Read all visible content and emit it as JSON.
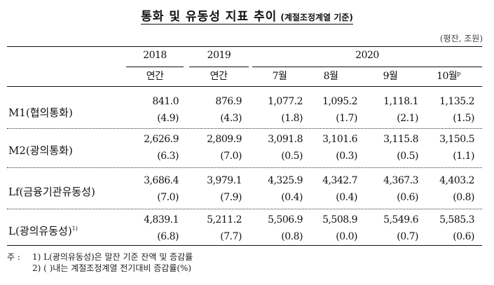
{
  "title": {
    "main": "통화 및 유동성 지표 추이",
    "sub": "(계절조정계열 기준)"
  },
  "unit": "(평잔, 조원)",
  "header": {
    "years": [
      "2018",
      "2019",
      "2020"
    ],
    "periods": [
      "연간",
      "연간",
      "7월",
      "8월",
      "9월",
      "10월"
    ],
    "prelim_mark": "p"
  },
  "rows": [
    {
      "label": "M1(협의통화)",
      "values": [
        "841.0",
        "876.9",
        "1,077.2",
        "1,095.2",
        "1,118.1",
        "1,135.2"
      ],
      "changes": [
        "(4.9)",
        "(4.3)",
        "(1.8)",
        "(1.7)",
        "(2.1)",
        "(1.5)"
      ]
    },
    {
      "label": "M2(광의통화)",
      "values": [
        "2,626.9",
        "2,809.9",
        "3,091.8",
        "3,101.6",
        "3,115.8",
        "3,150.5"
      ],
      "changes": [
        "(6.3)",
        "(7.0)",
        "(0.5)",
        "(0.3)",
        "(0.5)",
        "(1.1)"
      ]
    },
    {
      "label": "Lf(금융기관유동성)",
      "values": [
        "3,686.4",
        "3,979.1",
        "4,325.9",
        "4,342.7",
        "4,367.3",
        "4,403.2"
      ],
      "changes": [
        "(7.0)",
        "(7.9)",
        "(0.4)",
        "(0.4)",
        "(0.6)",
        "(0.8)"
      ]
    },
    {
      "label": "L(광의유동성)",
      "footnote": "1)",
      "values": [
        "4,839.1",
        "5,211.2",
        "5,506.9",
        "5,508.9",
        "5,549.6",
        "5,585.3"
      ],
      "changes": [
        "(6.8)",
        "(7.7)",
        "(0.8)",
        "(0.0)",
        "(0.7)",
        "(0.6)"
      ]
    }
  ],
  "notes": {
    "prefix": "주 :",
    "items": [
      "1) L(광의유동성)은 말잔 기준 잔액 및 증감률",
      "2) (     )내는 계절조정계열 전기대비 증감률(%)"
    ]
  }
}
